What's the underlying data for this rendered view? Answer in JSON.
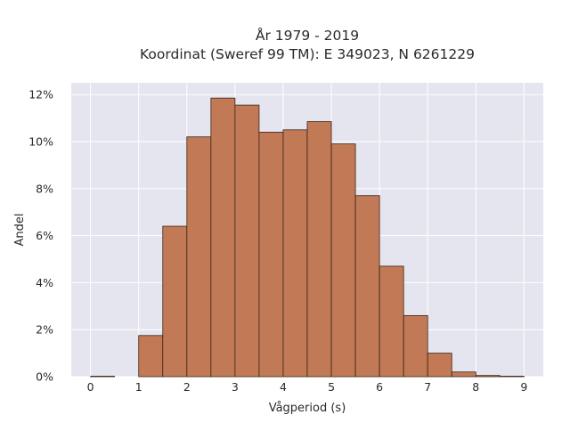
{
  "chart_data": {
    "type": "bar",
    "title": "År 1979 - 2019",
    "subtitle": "Koordinat (Sweref 99 TM): E 349023, N 6261229",
    "xlabel": "Vågperiod (s)",
    "ylabel": "Andel",
    "bin_width": 0.5,
    "bin_starts": [
      0,
      0.5,
      1,
      1.5,
      2,
      2.5,
      3,
      3.5,
      4,
      4.5,
      5,
      5.5,
      6,
      6.5,
      7,
      7.5,
      8,
      8.5
    ],
    "values": [
      0.02,
      0,
      1.75,
      6.4,
      10.2,
      11.85,
      11.55,
      10.4,
      10.5,
      10.85,
      9.9,
      7.7,
      4.7,
      2.6,
      1.0,
      0.2,
      0.05,
      0.02
    ],
    "xlim": [
      -0.4,
      9.4
    ],
    "ylim": [
      0,
      12.5
    ],
    "x_ticks": [
      0,
      1,
      2,
      3,
      4,
      5,
      6,
      7,
      8,
      9
    ],
    "y_ticks": [
      0,
      2,
      4,
      6,
      8,
      10,
      12
    ],
    "y_tick_suffix": "%",
    "grid": true,
    "colors": {
      "bar_fill": "#c17a55",
      "bar_edge": "#3b2418",
      "plot_bg": "#e5e5ef",
      "grid": "#ffffff"
    }
  }
}
